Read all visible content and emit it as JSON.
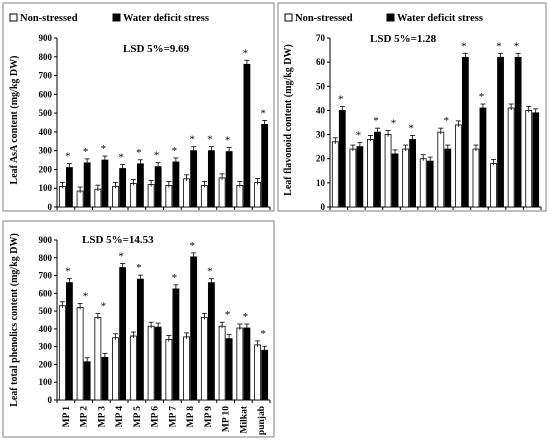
{
  "colors": {
    "non_stressed": "#ffffff",
    "water_deficit": "#000000",
    "frame": "#7f7f7f"
  },
  "chart_data": [
    {
      "type": "bar",
      "id": "asa",
      "categories": [
        "MP 1",
        "MP 2",
        "MP 3",
        "MP 4",
        "MP 5",
        "MP 6",
        "MP 7",
        "MP 8",
        "MP 9",
        "MP 10",
        "Milkat",
        "punjab"
      ],
      "series": [
        {
          "name": "Non-stressed",
          "values": [
            110,
            85,
            95,
            110,
            125,
            120,
            115,
            150,
            115,
            155,
            115,
            130
          ]
        },
        {
          "name": "Water deficit stress",
          "values": [
            210,
            235,
            250,
            205,
            230,
            215,
            240,
            300,
            300,
            295,
            760,
            440
          ]
        }
      ],
      "significance": [
        true,
        true,
        true,
        true,
        true,
        true,
        true,
        true,
        true,
        true,
        true,
        true
      ],
      "title": "",
      "annotation": "LSD 5%=9.69",
      "xlabel": "",
      "ylabel": "Leaf AsA content (mg/kg DW)",
      "ylim": [
        0,
        900
      ],
      "yticks": [
        "0",
        "100",
        "200",
        "300",
        "400",
        "500",
        "600",
        "700",
        "800",
        "900"
      ],
      "legend": "top",
      "grid": false
    },
    {
      "type": "bar",
      "id": "flavonoid",
      "categories": [
        "MP 1",
        "MP 2",
        "MP 3",
        "MP 4",
        "MP 5",
        "MP 6",
        "MP 7",
        "MP 8",
        "MP 9",
        "MP 10",
        "Milkat",
        "punjab"
      ],
      "series": [
        {
          "name": "Non-stressed",
          "values": [
            27,
            24,
            28,
            30,
            24,
            20,
            31,
            34,
            24,
            18,
            41,
            40
          ]
        },
        {
          "name": "Water deficit stress",
          "values": [
            40,
            25,
            31,
            22,
            28,
            19,
            24,
            62,
            41,
            62,
            62,
            39
          ]
        }
      ],
      "significance": [
        true,
        true,
        true,
        true,
        true,
        false,
        true,
        true,
        true,
        true,
        true,
        false
      ],
      "title": "",
      "annotation": "LSD 5%=1.28",
      "xlabel": "",
      "ylabel": "Leaf flavonoid content (mg/kg DW)",
      "ylim": [
        0,
        70
      ],
      "yticks": [
        "0",
        "10",
        "20",
        "30",
        "40",
        "50",
        "60",
        "70"
      ],
      "legend": "top",
      "grid": false
    },
    {
      "type": "bar",
      "id": "phenolics",
      "categories": [
        "MP 1",
        "MP 2",
        "MP 3",
        "MP 4",
        "MP 5",
        "MP 6",
        "MP 7",
        "MP 8",
        "MP 9",
        "MP 10",
        "Milkat",
        "punjab"
      ],
      "series": [
        {
          "name": "Non-stressed",
          "values": [
            530,
            520,
            465,
            350,
            360,
            415,
            340,
            355,
            465,
            415,
            405,
            310
          ]
        },
        {
          "name": "Water deficit stress",
          "values": [
            660,
            215,
            240,
            745,
            680,
            410,
            625,
            805,
            660,
            345,
            405,
            280
          ]
        }
      ],
      "significance": [
        true,
        true,
        true,
        true,
        true,
        false,
        true,
        true,
        true,
        true,
        true,
        true
      ],
      "title": "",
      "annotation": "LSD 5%=14.53",
      "xlabel": "",
      "ylabel": "Leaf total phenolics content (mg/kg DW)",
      "ylim": [
        0,
        900
      ],
      "yticks": [
        "0",
        "100",
        "200",
        "300",
        "400",
        "500",
        "600",
        "700",
        "800",
        "900"
      ],
      "legend": "none",
      "grid": false
    }
  ]
}
